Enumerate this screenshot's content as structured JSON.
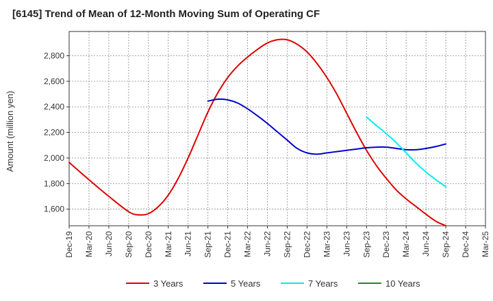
{
  "chart_data": {
    "type": "line",
    "title": "[6145]  Trend of Mean of 12-Month Moving Sum of Operating CF",
    "xlabel": "",
    "ylabel": "Amount (million yen)",
    "ylim": [
      1470,
      2990
    ],
    "yticks": [
      1600,
      1800,
      2000,
      2200,
      2400,
      2600,
      2800
    ],
    "ytick_labels": [
      "1,600",
      "1,800",
      "2,000",
      "2,200",
      "2,400",
      "2,600",
      "2,800"
    ],
    "xtick_labels": [
      "Dec-19",
      "Mar-20",
      "Jun-20",
      "Sep-20",
      "Dec-20",
      "Mar-21",
      "Jun-21",
      "Sep-21",
      "Dec-21",
      "Mar-22",
      "Jun-22",
      "Sep-22",
      "Dec-22",
      "Mar-23",
      "Jun-23",
      "Sep-23",
      "Dec-23",
      "Mar-24",
      "Jun-24",
      "Sep-24",
      "Dec-24",
      "Mar-25"
    ],
    "x_unit": "quarter index from Dec-19",
    "grid": true,
    "legend_position": "bottom",
    "series": [
      {
        "name": "3 Years",
        "color": "#dd0000",
        "x": [
          0,
          1,
          2,
          3,
          3.5,
          4,
          4.5,
          5,
          5.5,
          6,
          6.5,
          7,
          7.5,
          8,
          8.5,
          9,
          9.5,
          10,
          10.5,
          11,
          11.5,
          12,
          12.5,
          13,
          13.5,
          14,
          14.5,
          15,
          15.5,
          16,
          16.5,
          17,
          17.5,
          18,
          18.5,
          19
        ],
        "y": [
          1965,
          1830,
          1700,
          1580,
          1555,
          1565,
          1620,
          1710,
          1840,
          2000,
          2180,
          2360,
          2510,
          2630,
          2720,
          2790,
          2850,
          2900,
          2925,
          2925,
          2890,
          2830,
          2740,
          2630,
          2500,
          2350,
          2200,
          2060,
          1940,
          1840,
          1750,
          1680,
          1620,
          1560,
          1505,
          1470
        ]
      },
      {
        "name": "5 Years",
        "color": "#0000cc",
        "x": [
          7,
          7.5,
          8,
          8.5,
          9,
          9.5,
          10,
          10.5,
          11,
          11.5,
          12,
          12.5,
          13,
          13.5,
          14,
          14.5,
          15,
          15.5,
          16,
          16.5,
          17,
          17.5,
          18,
          18.5,
          19
        ],
        "y": [
          2445,
          2460,
          2455,
          2430,
          2385,
          2330,
          2270,
          2205,
          2140,
          2075,
          2040,
          2030,
          2040,
          2050,
          2060,
          2070,
          2080,
          2085,
          2085,
          2075,
          2065,
          2065,
          2075,
          2090,
          2110
        ]
      },
      {
        "name": "7 Years",
        "color": "#00eeee",
        "x": [
          15,
          15.5,
          16,
          16.5,
          17,
          17.5,
          18,
          18.5,
          19
        ],
        "y": [
          2320,
          2255,
          2190,
          2120,
          2040,
          1960,
          1890,
          1830,
          1775
        ]
      },
      {
        "name": "10 Years",
        "color": "#228822",
        "x": [],
        "y": []
      }
    ]
  }
}
